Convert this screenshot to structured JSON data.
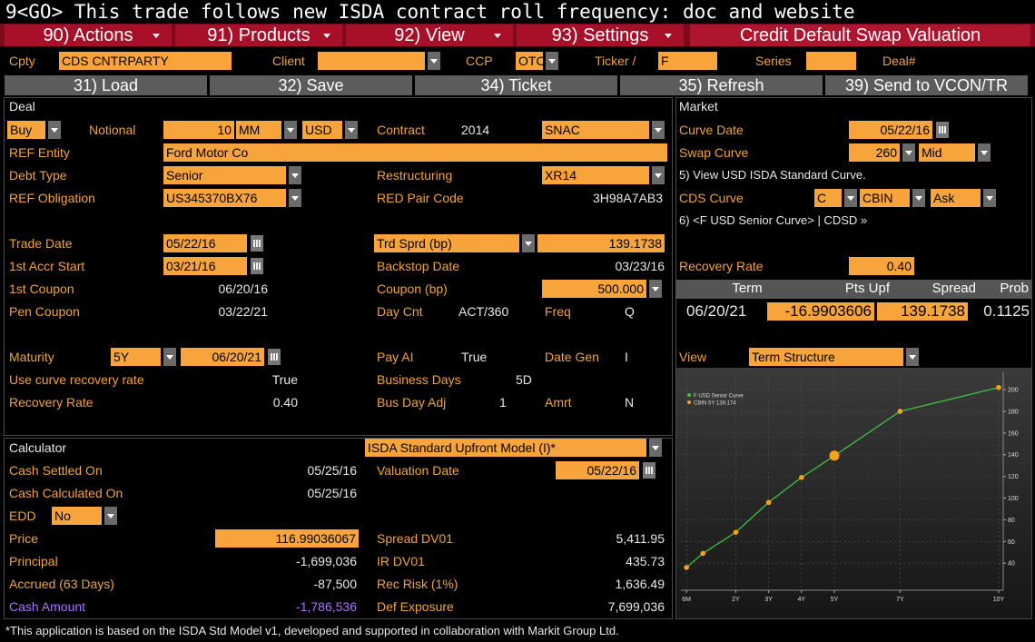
{
  "command_line": "9<GO> This trade follows new ISDA contract roll frequency: doc and website",
  "menu": [
    "90) Actions",
    "91) Products",
    "92) View",
    "93) Settings"
  ],
  "screen_title": "Credit Default Swap Valuation",
  "filter_bar": {
    "cpty_label": "Cpty",
    "cpty": "CDS CNTRPARTY",
    "client_label": "Client",
    "ccp_label": "CCP",
    "ccp": "OTC",
    "ticker_label": "Ticker /",
    "ticker": "F",
    "series_label": "Series",
    "deal_label": "Deal#"
  },
  "toolbar": [
    "31) Load",
    "32) Save",
    "34) Ticket",
    "35) Refresh",
    "39) Send to VCON/TR"
  ],
  "deal": {
    "title": "Deal",
    "side": "Buy",
    "notional_label": "Notional",
    "notional": "10",
    "notional_unit": "MM",
    "currency": "USD",
    "contract_label": "Contract",
    "contract_year": "2014",
    "contract_type": "SNAC",
    "ref_entity_label": "REF Entity",
    "ref_entity": "Ford Motor Co",
    "debt_type_label": "Debt Type",
    "debt_type": "Senior",
    "restructuring_label": "Restructuring",
    "restructuring": "XR14",
    "ref_obligation_label": "REF Obligation",
    "ref_obligation": "US345370BX76",
    "red_pair_label": "RED Pair Code",
    "red_pair": "3H98A7AB3",
    "trade_date_label": "Trade Date",
    "trade_date": "05/22/16",
    "trd_sprd_label": "Trd Sprd (bp)",
    "trd_sprd": "139.1738",
    "accr_start_label": "1st Accr Start",
    "accr_start": "03/21/16",
    "backstop_label": "Backstop Date",
    "backstop": "03/23/16",
    "first_coupon_label": "1st Coupon",
    "first_coupon": "06/20/16",
    "coupon_label": "Coupon (bp)",
    "coupon": "500.000",
    "pen_coupon_label": "Pen Coupon",
    "pen_coupon": "03/22/21",
    "day_cnt_label": "Day Cnt",
    "day_cnt": "ACT/360",
    "freq_label": "Freq",
    "freq": "Q",
    "maturity_label": "Maturity",
    "tenor": "5Y",
    "maturity": "06/20/21",
    "pay_ai_label": "Pay AI",
    "pay_ai": "True",
    "date_gen_label": "Date Gen",
    "date_gen": "I",
    "use_curve_rr_label": "Use curve recovery rate",
    "use_curve_rr": "True",
    "business_days_label": "Business Days",
    "business_days": "5D",
    "recovery_label": "Recovery Rate",
    "recovery": "0.40",
    "bus_day_adj_label": "Bus Day Adj",
    "bus_day_adj": "1",
    "amrt_label": "Amrt",
    "amrt": "N"
  },
  "market": {
    "title": "Market",
    "curve_date_label": "Curve Date",
    "curve_date": "05/22/16",
    "swap_curve_label": "Swap Curve",
    "swap_curve": "260",
    "swap_side": "Mid",
    "link1": "5) View USD ISDA Standard Curve.",
    "cds_curve_label": "CDS Curve",
    "cds_curve": "C",
    "source": "CBIN",
    "cds_side": "Ask",
    "link2": "6) <F USD Senior Curve> | CDSD »",
    "recovery_label": "Recovery Rate",
    "recovery": "0.40",
    "table": {
      "headers": [
        "Term",
        "Pts Upf",
        "Spread",
        "Prob"
      ],
      "row": [
        "06/20/21",
        "-16.9903606",
        "139.1738",
        "0.1125"
      ]
    },
    "view_label": "View",
    "view": "Term Structure"
  },
  "calculator": {
    "title": "Calculator",
    "model": "ISDA Standard Upfront Model (I)*",
    "cash_settled_label": "Cash Settled On",
    "cash_settled": "05/25/16",
    "valuation_date_label": "Valuation Date",
    "valuation_date": "05/22/16",
    "cash_calc_label": "Cash Calculated On",
    "cash_calc": "05/25/16",
    "edd_label": "EDD",
    "edd": "No",
    "price_label": "Price",
    "price": "116.99036067",
    "spread_dv01_label": "Spread DV01",
    "spread_dv01": "5,411.95",
    "principal_label": "Principal",
    "principal": "-1,699,036",
    "ir_dv01_label": "IR DV01",
    "ir_dv01": "435.73",
    "accrued_label": "Accrued (63 Days)",
    "accrued": "-87,500",
    "rec_risk_label": "Rec Risk (1%)",
    "rec_risk": "1,636.49",
    "cash_amount_label": "Cash Amount",
    "cash_amount": "-1,786,536",
    "def_exposure_label": "Def Exposure",
    "def_exposure": "7,699,036"
  },
  "chart_data": {
    "type": "line",
    "legend": "upper left",
    "grid": true,
    "x": [
      0.5,
      1,
      2,
      3,
      4,
      5,
      7,
      10
    ],
    "series": [
      {
        "name": "F USD Senior Curve",
        "color": "#3cc23c",
        "marker_color": "#f7a21b",
        "values": [
          36,
          49,
          68.5,
          96,
          119,
          139,
          180,
          202
        ]
      },
      {
        "name": "CBIN 5Y 139.174",
        "color": "#f7a21b",
        "x": [
          5
        ],
        "values": [
          139.174
        ]
      }
    ],
    "xlim": [
      0.33,
      10.14
    ],
    "ylim": [
      15,
      216
    ],
    "xticks": [
      {
        "value": 0.5,
        "label": "6M"
      },
      {
        "value": 2,
        "label": "2Y"
      },
      {
        "value": 3,
        "label": "3Y"
      },
      {
        "value": 4,
        "label": "4Y"
      },
      {
        "value": 5,
        "label": "5Y"
      },
      {
        "value": 7,
        "label": "7Y"
      },
      {
        "value": 10,
        "label": "10Y"
      }
    ],
    "yticks": [
      40,
      60,
      80,
      100,
      120,
      140,
      160,
      180,
      200
    ]
  },
  "footnote": "*This application is based on the ISDA Std Model v1, developed and supported in collaboration with Markit Group Ltd."
}
